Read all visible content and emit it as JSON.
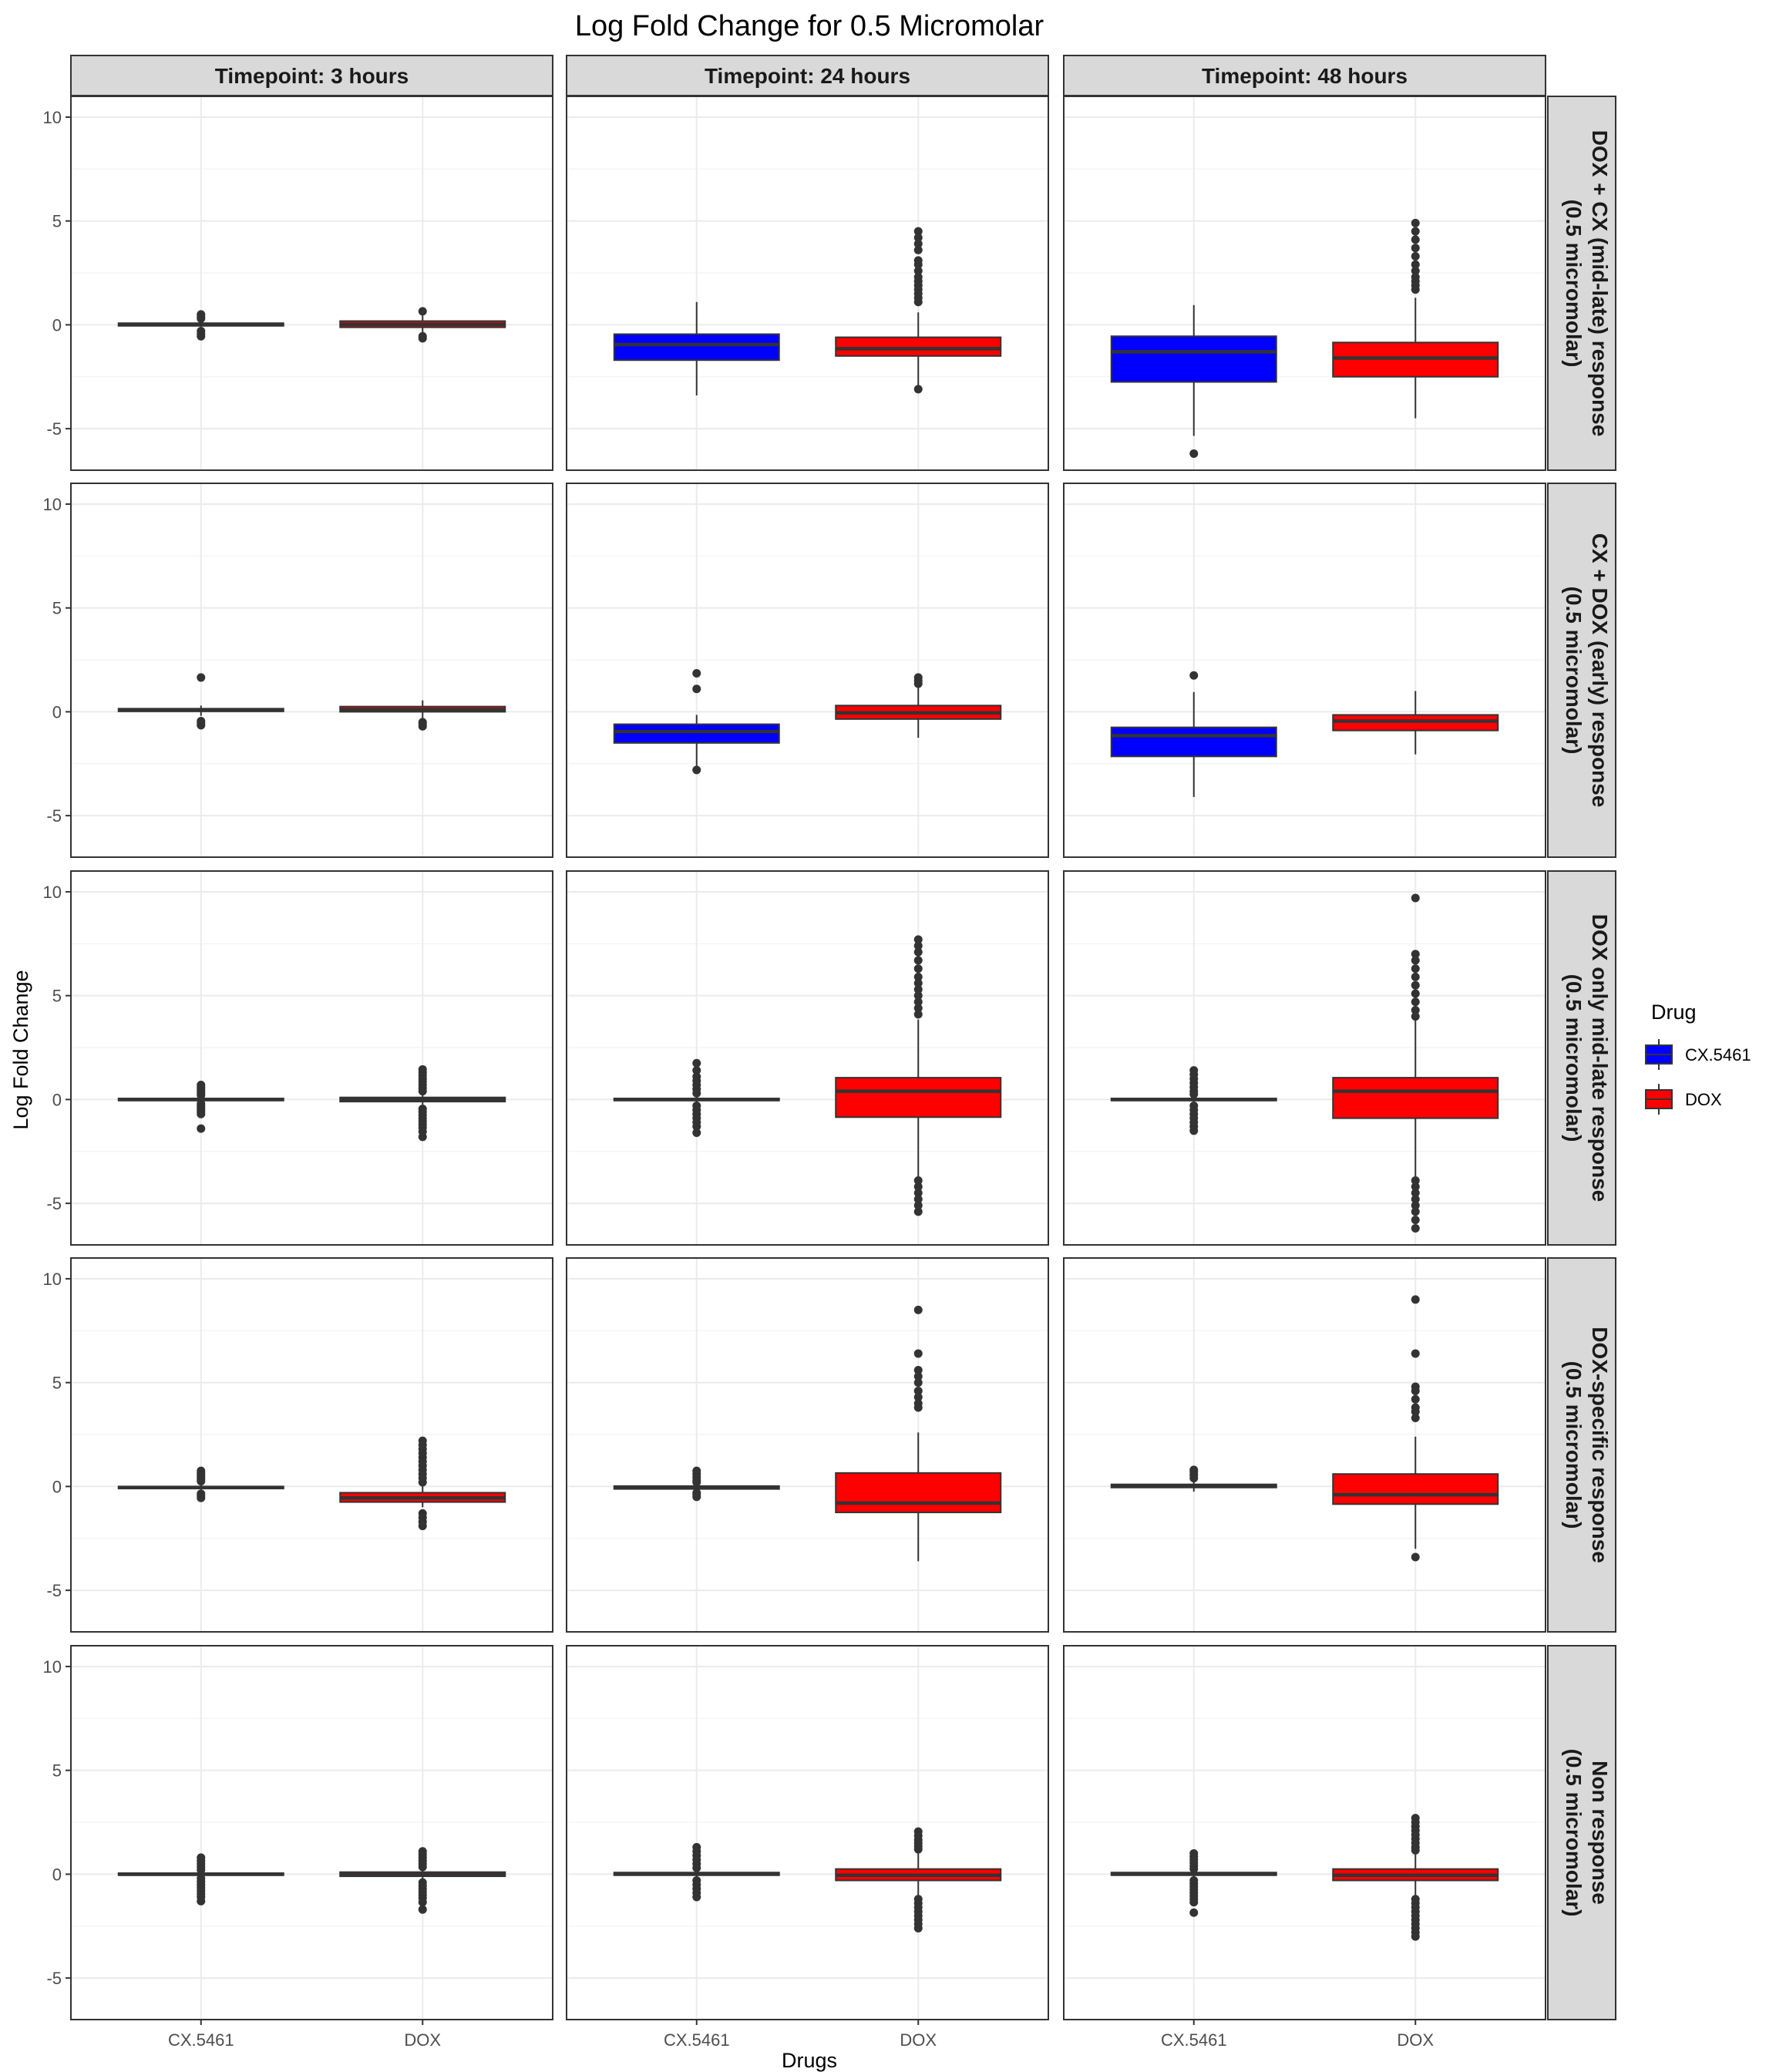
{
  "chart_data": {
    "type": "boxplot",
    "title": "Log Fold Change for 0.5 Micromolar",
    "xlabel": "Drugs",
    "ylabel": "Log Fold Change",
    "categories": [
      "CX.5461",
      "DOX"
    ],
    "ylim": [
      -7,
      11
    ],
    "yticks": [
      -5,
      0,
      5,
      10
    ],
    "grid": true,
    "legend": {
      "title": "Drug",
      "position": "right",
      "entries": [
        {
          "name": "CX.5461",
          "color": "#0000ff"
        },
        {
          "name": "DOX",
          "color": "#ff0000"
        }
      ]
    },
    "facet_columns": [
      "Timepoint: 3 hours",
      "Timepoint: 24 hours",
      "Timepoint: 48 hours"
    ],
    "facet_rows": [
      {
        "line1": "DOX + CX (mid-late) response",
        "line2": "(0.5 micromolar)"
      },
      {
        "line1": "CX + DOX (early) response",
        "line2": "(0.5 micromolar)"
      },
      {
        "line1": "DOX only mid-late response",
        "line2": "(0.5 micromolar)"
      },
      {
        "line1": "DOX-specific response",
        "line2": "(0.5 micromolar)"
      },
      {
        "line1": "Non response",
        "line2": "(0.5 micromolar)"
      }
    ],
    "panels": [
      [
        [
          {
            "q1": -0.05,
            "median": 0.02,
            "q3": 0.08,
            "lo": -0.15,
            "hi": 0.2,
            "outliers": [
              0.5,
              0.4,
              0.3,
              -0.3,
              -0.45,
              -0.55
            ]
          },
          {
            "q1": -0.12,
            "median": 0.02,
            "q3": 0.18,
            "lo": -0.4,
            "hi": 0.45,
            "outliers": [
              0.65,
              -0.55,
              -0.65
            ]
          }
        ],
        [
          {
            "q1": -1.7,
            "median": -0.95,
            "q3": -0.45,
            "lo": -3.4,
            "hi": 1.1,
            "outliers": []
          },
          {
            "q1": -1.5,
            "median": -1.15,
            "q3": -0.6,
            "lo": -3.0,
            "hi": 0.6,
            "outliers": [
              4.5,
              4.2,
              3.9,
              3.6,
              3.1,
              2.9,
              2.6,
              2.3,
              2.1,
              1.9,
              1.7,
              1.5,
              1.3,
              1.1,
              -3.1
            ]
          }
        ],
        [
          {
            "q1": -2.75,
            "median": -1.3,
            "q3": -0.55,
            "lo": -5.35,
            "hi": 0.95,
            "outliers": [
              -6.2
            ]
          },
          {
            "q1": -2.5,
            "median": -1.6,
            "q3": -0.85,
            "lo": -4.5,
            "hi": 1.3,
            "outliers": [
              4.9,
              4.5,
              4.1,
              3.7,
              3.3,
              2.9,
              2.6,
              2.3,
              2.1,
              1.9,
              1.7
            ]
          }
        ]
      ],
      [
        [
          {
            "q1": 0.02,
            "median": 0.08,
            "q3": 0.15,
            "lo": -0.2,
            "hi": 0.3,
            "outliers": [
              1.65,
              -0.45,
              -0.55,
              -0.65
            ]
          },
          {
            "q1": 0.0,
            "median": 0.1,
            "q3": 0.25,
            "lo": -0.35,
            "hi": 0.55,
            "outliers": [
              -0.5,
              -0.6,
              -0.7
            ]
          }
        ],
        [
          {
            "q1": -1.5,
            "median": -0.95,
            "q3": -0.6,
            "lo": -2.6,
            "hi": -0.15,
            "outliers": [
              1.85,
              1.1,
              -2.8
            ]
          },
          {
            "q1": -0.35,
            "median": -0.05,
            "q3": 0.3,
            "lo": -1.25,
            "hi": 1.2,
            "outliers": [
              1.65,
              1.5,
              1.35
            ]
          }
        ],
        [
          {
            "q1": -2.15,
            "median": -1.15,
            "q3": -0.75,
            "lo": -4.1,
            "hi": 0.95,
            "outliers": [
              1.75
            ]
          },
          {
            "q1": -0.9,
            "median": -0.45,
            "q3": -0.15,
            "lo": -2.05,
            "hi": 1.0,
            "outliers": []
          }
        ]
      ],
      [
        [
          {
            "q1": -0.05,
            "median": 0.0,
            "q3": 0.05,
            "lo": -0.12,
            "hi": 0.12,
            "outliers": [
              0.7,
              0.6,
              0.5,
              0.4,
              0.3,
              0.2,
              -0.2,
              -0.3,
              -0.4,
              -0.5,
              -0.6,
              -0.7,
              -1.4
            ]
          },
          {
            "q1": -0.1,
            "median": 0.0,
            "q3": 0.1,
            "lo": -0.25,
            "hi": 0.25,
            "outliers": [
              1.45,
              1.3,
              1.15,
              1.0,
              0.85,
              0.7,
              0.55,
              0.4,
              -0.45,
              -0.6,
              -0.75,
              -0.9,
              -1.05,
              -1.2,
              -1.35,
              -1.55,
              -1.8
            ]
          }
        ],
        [
          {
            "q1": -0.05,
            "median": 0.0,
            "q3": 0.05,
            "lo": -0.15,
            "hi": 0.15,
            "outliers": [
              1.75,
              1.4,
              1.1,
              0.9,
              0.7,
              0.5,
              0.3,
              -0.3,
              -0.5,
              -0.7,
              -0.9,
              -1.1,
              -1.3,
              -1.6
            ]
          },
          {
            "q1": -0.85,
            "median": 0.4,
            "q3": 1.05,
            "lo": -3.75,
            "hi": 3.85,
            "outliers": [
              7.7,
              7.4,
              7.1,
              6.7,
              6.3,
              5.9,
              5.6,
              5.3,
              5.0,
              4.7,
              4.4,
              4.1,
              -3.9,
              -4.2,
              -4.5,
              -4.8,
              -5.1,
              -5.4
            ]
          }
        ],
        [
          {
            "q1": -0.05,
            "median": 0.0,
            "q3": 0.05,
            "lo": -0.15,
            "hi": 0.15,
            "outliers": [
              1.4,
              1.2,
              1.0,
              0.8,
              0.6,
              0.4,
              0.25,
              -0.3,
              -0.5,
              -0.7,
              -0.9,
              -1.1,
              -1.3,
              -1.5
            ]
          },
          {
            "q1": -0.9,
            "median": 0.4,
            "q3": 1.05,
            "lo": -3.7,
            "hi": 3.9,
            "outliers": [
              9.7,
              7.0,
              6.7,
              6.3,
              5.9,
              5.5,
              5.1,
              4.7,
              4.3,
              4.0,
              -3.9,
              -4.2,
              -4.5,
              -4.8,
              -5.1,
              -5.4,
              -5.8,
              -6.2
            ]
          }
        ]
      ],
      [
        [
          {
            "q1": -0.1,
            "median": -0.05,
            "q3": 0.0,
            "lo": -0.2,
            "hi": 0.1,
            "outliers": [
              0.75,
              0.65,
              0.55,
              0.45,
              0.35,
              0.25,
              -0.35,
              -0.45,
              -0.55
            ]
          },
          {
            "q1": -0.75,
            "median": -0.55,
            "q3": -0.3,
            "lo": -1.0,
            "hi": 0.05,
            "outliers": [
              2.2,
              2.0,
              1.8,
              1.6,
              1.4,
              1.2,
              1.0,
              0.8,
              0.6,
              0.4,
              0.2,
              -1.3,
              -1.5,
              -1.7,
              -1.9
            ]
          }
        ],
        [
          {
            "q1": -0.12,
            "median": -0.05,
            "q3": 0.02,
            "lo": -0.2,
            "hi": 0.1,
            "outliers": [
              0.75,
              0.6,
              0.45,
              0.3,
              0.2,
              -0.3,
              -0.4,
              -0.5
            ]
          },
          {
            "q1": -1.25,
            "median": -0.8,
            "q3": 0.65,
            "lo": -3.6,
            "hi": 2.6,
            "outliers": [
              8.5,
              6.4,
              5.6,
              5.3,
              5.0,
              4.6,
              4.3,
              4.0,
              3.8
            ]
          }
        ],
        [
          {
            "q1": -0.05,
            "median": 0.02,
            "q3": 0.1,
            "lo": -0.25,
            "hi": 0.25,
            "outliers": [
              0.8,
              0.7,
              0.55,
              0.4
            ]
          },
          {
            "q1": -0.85,
            "median": -0.4,
            "q3": 0.6,
            "lo": -3.0,
            "hi": 2.4,
            "outliers": [
              9.0,
              6.4,
              4.8,
              4.6,
              4.2,
              3.8,
              3.6,
              3.3,
              -3.4
            ]
          }
        ]
      ],
      [
        [
          {
            "q1": -0.05,
            "median": 0.0,
            "q3": 0.05,
            "lo": -0.12,
            "hi": 0.12,
            "outliers": [
              0.8,
              0.65,
              0.5,
              0.35,
              0.2,
              -0.2,
              -0.35,
              -0.5,
              -0.65,
              -0.8,
              -0.95,
              -1.1,
              -1.3
            ]
          },
          {
            "q1": -0.1,
            "median": -0.02,
            "q3": 0.1,
            "lo": -0.25,
            "hi": 0.25,
            "outliers": [
              1.1,
              0.95,
              0.8,
              0.65,
              0.5,
              0.35,
              -0.4,
              -0.55,
              -0.7,
              -0.85,
              -1.0,
              -1.15,
              -1.35,
              -1.7
            ]
          }
        ],
        [
          {
            "q1": -0.05,
            "median": 0.02,
            "q3": 0.08,
            "lo": -0.15,
            "hi": 0.15,
            "outliers": [
              1.3,
              1.1,
              0.9,
              0.7,
              0.5,
              0.3,
              -0.3,
              -0.5,
              -0.7,
              -0.9,
              -1.1
            ]
          },
          {
            "q1": -0.3,
            "median": -0.05,
            "q3": 0.25,
            "lo": -1.05,
            "hi": 1.0,
            "outliers": [
              2.05,
              1.85,
              1.65,
              1.5,
              1.35,
              1.2,
              -1.2,
              -1.4,
              -1.6,
              -1.8,
              -2.0,
              -2.2,
              -2.4,
              -2.6
            ]
          }
        ],
        [
          {
            "q1": -0.05,
            "median": 0.02,
            "q3": 0.08,
            "lo": -0.15,
            "hi": 0.15,
            "outliers": [
              1.0,
              0.85,
              0.7,
              0.55,
              0.4,
              0.25,
              -0.3,
              -0.45,
              -0.6,
              -0.75,
              -0.9,
              -1.05,
              -1.2,
              -1.35,
              -1.85
            ]
          },
          {
            "q1": -0.3,
            "median": -0.05,
            "q3": 0.25,
            "lo": -1.05,
            "hi": 1.05,
            "outliers": [
              2.7,
              2.5,
              2.3,
              2.1,
              1.9,
              1.7,
              1.5,
              1.3,
              1.15,
              -1.2,
              -1.4,
              -1.6,
              -1.8,
              -2.0,
              -2.2,
              -2.4,
              -2.6,
              -2.8,
              -3.0
            ]
          }
        ]
      ]
    ]
  }
}
